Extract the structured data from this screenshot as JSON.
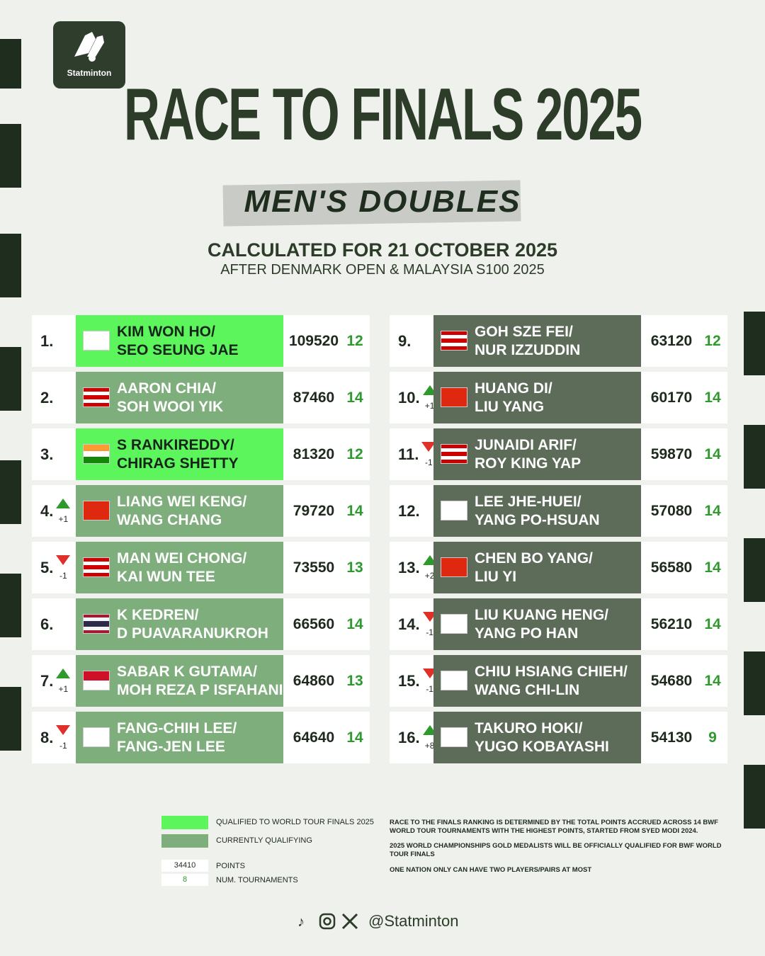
{
  "header": {
    "brand": "Statminton",
    "title": "RACE TO FINALS 2025",
    "subtitle": "MEN'S DOUBLES",
    "calculated": "CALCULATED FOR 21 OCTOBER 2025",
    "after": "AFTER DENMARK OPEN & MALAYSIA S100 2025"
  },
  "table": {
    "points_color": "#1f2a1f",
    "tournaments_color": "#2e9a2e",
    "up_color": "#2e9a2e",
    "down_color": "#e0302a",
    "rows": [
      {
        "rank": "1.",
        "movement": null,
        "line1": "KIM WON HO/",
        "line2": "SEO SEUNG JAE",
        "points": 109520,
        "tournaments": 12,
        "color": "#5cf55c",
        "text_color": "#16251a",
        "flag_colors": [
          "#ffffff"
        ]
      },
      {
        "rank": "2.",
        "movement": null,
        "line1": "AARON CHIA/",
        "line2": "SOH WOOI YIK",
        "points": 87460,
        "tournaments": 14,
        "color": "#7fae7d",
        "text_color": "#ffffff",
        "flag_colors": [
          "#cc0001",
          "#ffffff",
          "#cc0001",
          "#ffffff",
          "#cc0001"
        ]
      },
      {
        "rank": "3.",
        "movement": null,
        "line1": "S RANKIREDDY/",
        "line2": "CHIRAG SHETTY",
        "points": 81320,
        "tournaments": 12,
        "color": "#5cf55c",
        "text_color": "#16251a",
        "flag_colors": [
          "#ff9933",
          "#ffffff",
          "#138808"
        ]
      },
      {
        "rank": "4.",
        "movement": "+1",
        "line1": "LIANG WEI KENG/",
        "line2": "WANG CHANG",
        "points": 79720,
        "tournaments": 14,
        "color": "#7fae7d",
        "text_color": "#ffffff",
        "flag_colors": [
          "#de2910"
        ]
      },
      {
        "rank": "5.",
        "movement": "-1",
        "line1": "MAN WEI CHONG/",
        "line2": "KAI WUN TEE",
        "points": 73550,
        "tournaments": 13,
        "color": "#7fae7d",
        "text_color": "#ffffff",
        "flag_colors": [
          "#cc0001",
          "#ffffff",
          "#cc0001",
          "#ffffff",
          "#cc0001"
        ]
      },
      {
        "rank": "6.",
        "movement": null,
        "line1": "K KEDREN/",
        "line2": "D PUAVARANUKROH",
        "points": 66560,
        "tournaments": 14,
        "color": "#7fae7d",
        "text_color": "#ffffff",
        "flag_colors": [
          "#a51931",
          "#f4f5f8",
          "#2d2a4a",
          "#2d2a4a",
          "#f4f5f8",
          "#a51931"
        ]
      },
      {
        "rank": "7.",
        "movement": "+1",
        "line1": "SABAR K GUTAMA/",
        "line2": "MOH REZA P ISFAHANI",
        "points": 64860,
        "tournaments": 13,
        "color": "#7fae7d",
        "text_color": "#ffffff",
        "flag_colors": [
          "#ce1126",
          "#ffffff"
        ]
      },
      {
        "rank": "8.",
        "movement": "-1",
        "line1": "FANG-CHIH LEE/",
        "line2": "FANG-JEN LEE",
        "points": 64640,
        "tournaments": 14,
        "color": "#7fae7d",
        "text_color": "#ffffff",
        "flag_colors": [
          "#ffffff"
        ]
      },
      {
        "rank": "9.",
        "movement": null,
        "line1": "GOH SZE FEI/",
        "line2": "NUR IZZUDDIN",
        "points": 63120,
        "tournaments": 12,
        "color": "#5d6b59",
        "text_color": "#ffffff",
        "flag_colors": [
          "#cc0001",
          "#ffffff",
          "#cc0001",
          "#ffffff",
          "#cc0001"
        ]
      },
      {
        "rank": "10.",
        "movement": "+1",
        "line1": "HUANG DI/",
        "line2": "LIU YANG",
        "points": 60170,
        "tournaments": 14,
        "color": "#5d6b59",
        "text_color": "#ffffff",
        "flag_colors": [
          "#de2910"
        ]
      },
      {
        "rank": "11.",
        "movement": "-1",
        "line1": "JUNAIDI ARIF/",
        "line2": "ROY KING YAP",
        "points": 59870,
        "tournaments": 14,
        "color": "#5d6b59",
        "text_color": "#ffffff",
        "flag_colors": [
          "#cc0001",
          "#ffffff",
          "#cc0001",
          "#ffffff",
          "#cc0001"
        ]
      },
      {
        "rank": "12.",
        "movement": null,
        "line1": "LEE JHE-HUEI/",
        "line2": "YANG PO-HSUAN",
        "points": 57080,
        "tournaments": 14,
        "color": "#5d6b59",
        "text_color": "#ffffff",
        "flag_colors": [
          "#ffffff"
        ]
      },
      {
        "rank": "13.",
        "movement": "+2",
        "line1": "CHEN BO YANG/",
        "line2": "LIU YI",
        "points": 56580,
        "tournaments": 14,
        "color": "#5d6b59",
        "text_color": "#ffffff",
        "flag_colors": [
          "#de2910"
        ]
      },
      {
        "rank": "14.",
        "movement": "-1",
        "line1": "LIU KUANG HENG/",
        "line2": "YANG PO HAN",
        "points": 56210,
        "tournaments": 14,
        "color": "#5d6b59",
        "text_color": "#ffffff",
        "flag_colors": [
          "#ffffff"
        ]
      },
      {
        "rank": "15.",
        "movement": "-1",
        "line1": "CHIU HSIANG CHIEH/",
        "line2": "WANG CHI-LIN",
        "points": 54680,
        "tournaments": 14,
        "color": "#5d6b59",
        "text_color": "#ffffff",
        "flag_colors": [
          "#ffffff"
        ]
      },
      {
        "rank": "16.",
        "movement": "+8",
        "line1": "TAKURO HOKI/",
        "line2": "YUGO KOBAYASHI",
        "points": 54130,
        "tournaments": 9,
        "color": "#5d6b59",
        "text_color": "#ffffff",
        "flag_colors": [
          "#ffffff"
        ]
      }
    ]
  },
  "legend": {
    "items": [
      {
        "color": "#5cf55c",
        "label": "QUALIFIED TO WORLD TOUR FINALS 2025"
      },
      {
        "color": "#7fae7d",
        "label": "CURRENTLY QUALIFYING"
      }
    ],
    "points_sample": 34410,
    "points_label": "POINTS",
    "tournaments_sample": 8,
    "tournaments_label": "NUM. TOURNAMENTS"
  },
  "notes": [
    "RACE TO THE FINALS RANKING IS DETERMINED BY THE TOTAL POINTS ACCRUED ACROSS 14 BWF WORLD TOUR TOURNAMENTS WITH THE HIGHEST POINTS, STARTED FROM SYED MODI 2024.",
    "2025 WORLD CHAMPIONSHIPS GOLD MEDALISTS WILL BE OFFICIALLY QUALIFIED FOR BWF WORLD TOUR FINALS",
    "ONE NATION ONLY CAN HAVE TWO PLAYERS/PAIRS AT MOST"
  ],
  "footer": {
    "handle": "@Statminton"
  }
}
